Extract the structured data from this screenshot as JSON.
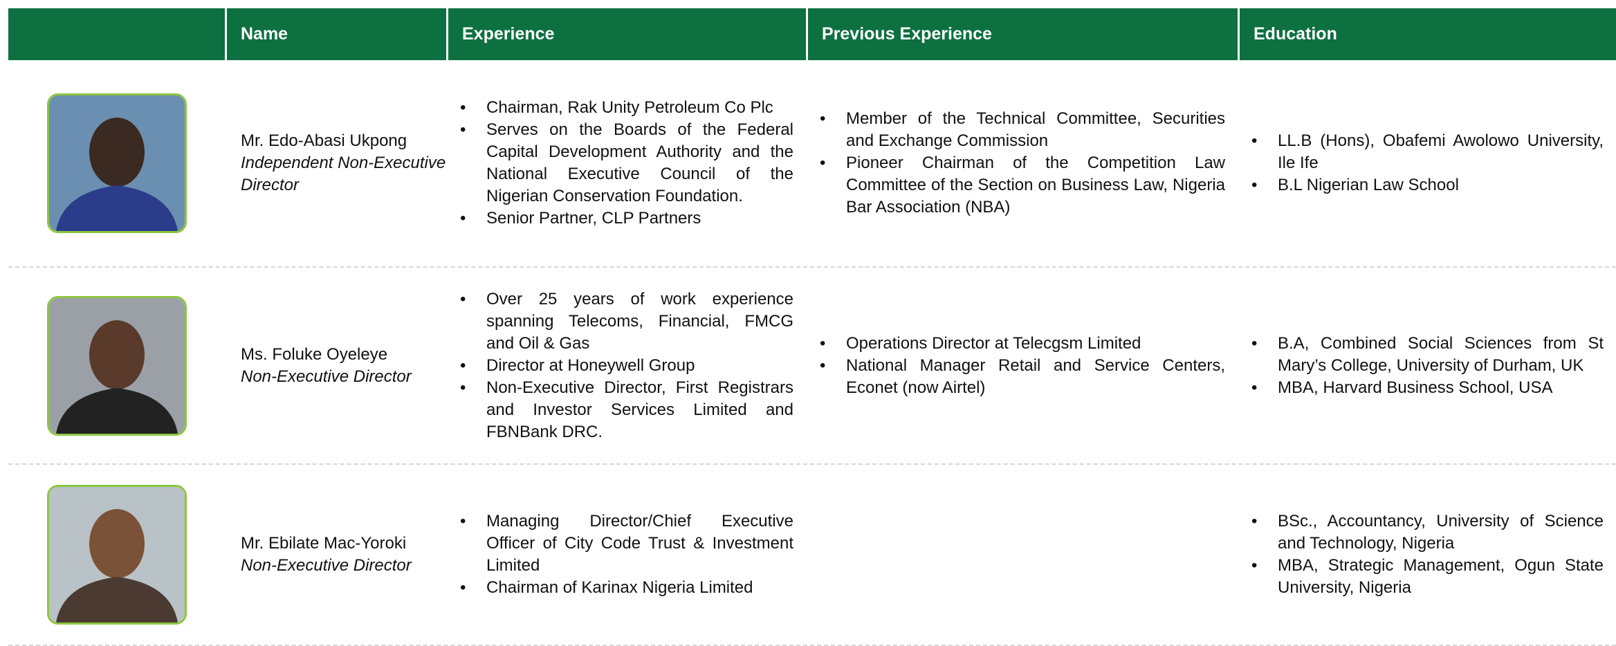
{
  "header": {
    "columns": [
      "Name",
      "Experience",
      "Previous Experience",
      "Education"
    ]
  },
  "rows": [
    {
      "name": "Mr. Edo-Abasi Ukpong",
      "role": "Independent Non-Executive Director",
      "experience": [
        "Chairman, Rak Unity Petroleum Co Plc",
        "Serves on the Boards of the Federal Capital Development Authority and the National Executive Council of the Nigerian Conservation Foundation.",
        "Senior Partner, CLP Partners"
      ],
      "previous_experience": [
        "Member of the Technical Committee, Securities and Exchange Commission",
        "Pioneer Chairman of the Competition Law Committee of the Section on Business Law, Nigeria Bar Association (NBA)"
      ],
      "education": [
        "LL.B (Hons), Obafemi Awolowo University, Ile Ife",
        "B.L Nigerian Law School"
      ]
    },
    {
      "name": "Ms. Foluke Oyeleye",
      "role": "Non-Executive Director",
      "experience": [
        "Over 25 years of work experience spanning Telecoms, Financial, FMCG and Oil & Gas",
        "Director at Honeywell Group",
        "Non-Executive Director, First Registrars and Investor Services Limited and FBNBank DRC."
      ],
      "previous_experience": [
        "Operations Director at Telecgsm Limited",
        "National Manager Retail and Service Centers, Econet (now Airtel)"
      ],
      "education": [
        "B.A, Combined Social Sciences from St Mary’s College, University of Durham, UK",
        "MBA, Harvard Business School, USA"
      ]
    },
    {
      "name": "Mr. Ebilate Mac-Yoroki",
      "role": "Non-Executive Director",
      "experience": [
        "Managing Director/Chief Executive Officer of City Code Trust & Investment Limited",
        "Chairman of Karinax Nigeria Limited"
      ],
      "previous_experience": [],
      "education": [
        "BSc., Accountancy, University of Science and Technology, Nigeria",
        "MBA, Strategic Management, Ogun State University, Nigeria"
      ]
    }
  ]
}
